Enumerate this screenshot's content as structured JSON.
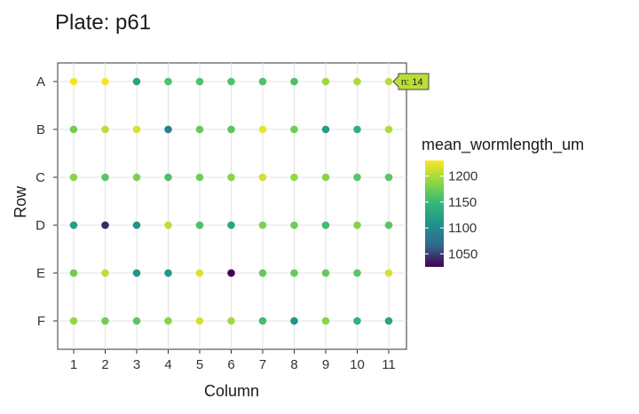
{
  "chart_data": {
    "type": "scatter",
    "title": "Plate: p61",
    "xlabel": "Column",
    "ylabel": "Row",
    "x_ticks": [
      "1",
      "2",
      "3",
      "4",
      "5",
      "6",
      "7",
      "8",
      "9",
      "10",
      "11"
    ],
    "y_ticks": [
      "A",
      "B",
      "C",
      "D",
      "E",
      "F"
    ],
    "grid": true,
    "colorbar": {
      "title": "mean_wormlength_um",
      "ticks": [
        1050,
        1100,
        1150,
        1200
      ],
      "range": [
        1025,
        1230
      ],
      "palette": [
        "#440154",
        "#31688e",
        "#21918c",
        "#35b779",
        "#90d743",
        "#fde725"
      ]
    },
    "tooltip": {
      "row": "A",
      "col": 11,
      "text": "n: 14"
    },
    "points": [
      {
        "row": "A",
        "col": 1,
        "value": 1225
      },
      {
        "row": "A",
        "col": 2,
        "value": 1228
      },
      {
        "row": "A",
        "col": 3,
        "value": 1125
      },
      {
        "row": "A",
        "col": 4,
        "value": 1160
      },
      {
        "row": "A",
        "col": 5,
        "value": 1160
      },
      {
        "row": "A",
        "col": 6,
        "value": 1160
      },
      {
        "row": "A",
        "col": 7,
        "value": 1160
      },
      {
        "row": "A",
        "col": 8,
        "value": 1160
      },
      {
        "row": "A",
        "col": 9,
        "value": 1195
      },
      {
        "row": "A",
        "col": 10,
        "value": 1200
      },
      {
        "row": "A",
        "col": 11,
        "value": 1205
      },
      {
        "row": "B",
        "col": 1,
        "value": 1175
      },
      {
        "row": "B",
        "col": 2,
        "value": 1205
      },
      {
        "row": "B",
        "col": 3,
        "value": 1215
      },
      {
        "row": "B",
        "col": 4,
        "value": 1090
      },
      {
        "row": "B",
        "col": 5,
        "value": 1170
      },
      {
        "row": "B",
        "col": 6,
        "value": 1165
      },
      {
        "row": "B",
        "col": 7,
        "value": 1222
      },
      {
        "row": "B",
        "col": 8,
        "value": 1175
      },
      {
        "row": "B",
        "col": 9,
        "value": 1120
      },
      {
        "row": "B",
        "col": 10,
        "value": 1140
      },
      {
        "row": "B",
        "col": 11,
        "value": 1200
      },
      {
        "row": "C",
        "col": 1,
        "value": 1185
      },
      {
        "row": "C",
        "col": 2,
        "value": 1165
      },
      {
        "row": "C",
        "col": 3,
        "value": 1180
      },
      {
        "row": "C",
        "col": 4,
        "value": 1160
      },
      {
        "row": "C",
        "col": 5,
        "value": 1175
      },
      {
        "row": "C",
        "col": 6,
        "value": 1185
      },
      {
        "row": "C",
        "col": 7,
        "value": 1215
      },
      {
        "row": "C",
        "col": 8,
        "value": 1190
      },
      {
        "row": "C",
        "col": 9,
        "value": 1185
      },
      {
        "row": "C",
        "col": 10,
        "value": 1165
      },
      {
        "row": "C",
        "col": 11,
        "value": 1165
      },
      {
        "row": "D",
        "col": 1,
        "value": 1120
      },
      {
        "row": "D",
        "col": 2,
        "value": 1040
      },
      {
        "row": "D",
        "col": 3,
        "value": 1110
      },
      {
        "row": "D",
        "col": 4,
        "value": 1205
      },
      {
        "row": "D",
        "col": 5,
        "value": 1160
      },
      {
        "row": "D",
        "col": 6,
        "value": 1125
      },
      {
        "row": "D",
        "col": 7,
        "value": 1180
      },
      {
        "row": "D",
        "col": 8,
        "value": 1175
      },
      {
        "row": "D",
        "col": 9,
        "value": 1155
      },
      {
        "row": "D",
        "col": 10,
        "value": 1185
      },
      {
        "row": "D",
        "col": 11,
        "value": 1165
      },
      {
        "row": "E",
        "col": 1,
        "value": 1175
      },
      {
        "row": "E",
        "col": 2,
        "value": 1205
      },
      {
        "row": "E",
        "col": 3,
        "value": 1110
      },
      {
        "row": "E",
        "col": 4,
        "value": 1115
      },
      {
        "row": "E",
        "col": 5,
        "value": 1218
      },
      {
        "row": "E",
        "col": 6,
        "value": 1025
      },
      {
        "row": "E",
        "col": 7,
        "value": 1170
      },
      {
        "row": "E",
        "col": 8,
        "value": 1170
      },
      {
        "row": "E",
        "col": 9,
        "value": 1170
      },
      {
        "row": "E",
        "col": 10,
        "value": 1165
      },
      {
        "row": "E",
        "col": 11,
        "value": 1215
      },
      {
        "row": "F",
        "col": 1,
        "value": 1190
      },
      {
        "row": "F",
        "col": 2,
        "value": 1175
      },
      {
        "row": "F",
        "col": 3,
        "value": 1165
      },
      {
        "row": "F",
        "col": 4,
        "value": 1185
      },
      {
        "row": "F",
        "col": 5,
        "value": 1215
      },
      {
        "row": "F",
        "col": 6,
        "value": 1195
      },
      {
        "row": "F",
        "col": 7,
        "value": 1155
      },
      {
        "row": "F",
        "col": 8,
        "value": 1110
      },
      {
        "row": "F",
        "col": 9,
        "value": 1185
      },
      {
        "row": "F",
        "col": 10,
        "value": 1140
      },
      {
        "row": "F",
        "col": 11,
        "value": 1125
      }
    ]
  }
}
